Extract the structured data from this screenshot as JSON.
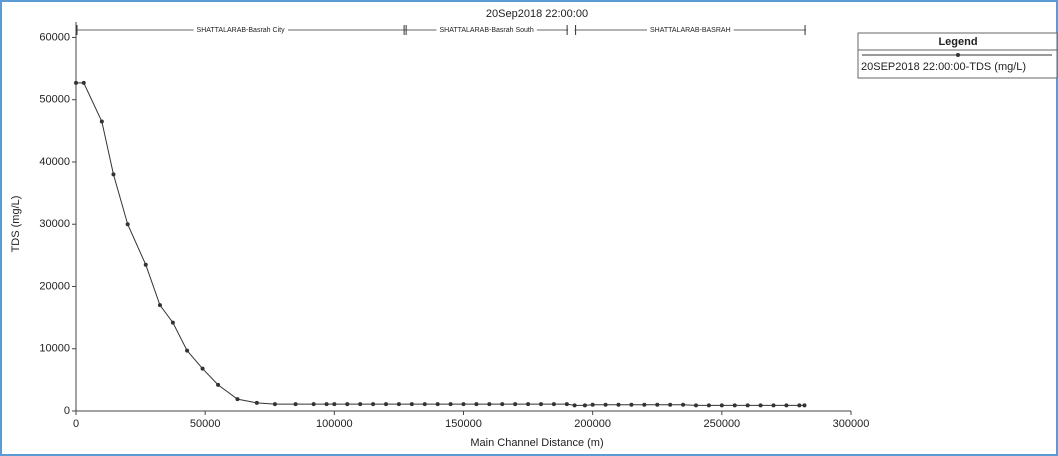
{
  "chart_data": {
    "type": "line",
    "title": "20Sep2018 22:00:00",
    "x_label": "Main Channel Distance (m)",
    "y_label": "TDS (mg/L)",
    "legend_title": "Legend",
    "legend_position": "top-right",
    "grid": false,
    "xlim": [
      0,
      300000
    ],
    "ylim": [
      0,
      62000
    ],
    "xticks": [
      0,
      50000,
      100000,
      150000,
      200000,
      250000,
      300000
    ],
    "yticks": [
      0,
      10000,
      20000,
      30000,
      40000,
      50000,
      60000
    ],
    "reaches": [
      {
        "name": "SHATTALARAB-Basrah City",
        "start": 0,
        "end": 127400
      },
      {
        "name": "SHATTALARAB-Basrah South",
        "start": 127400,
        "end": 190500
      },
      {
        "name": "SHATTALARAB-BASRAH",
        "start": 193000,
        "end": 282600
      }
    ],
    "x": [
      0,
      3000,
      10000,
      14500,
      20000,
      27000,
      32500,
      37500,
      43000,
      49000,
      55000,
      62500,
      70000,
      77000,
      85000,
      92000,
      97000,
      100000,
      105000,
      110000,
      115000,
      120000,
      125000,
      130000,
      135000,
      140000,
      145000,
      150000,
      155000,
      160000,
      165000,
      170000,
      175000,
      180000,
      185000,
      190000,
      193000,
      197000,
      200000,
      205000,
      210000,
      215000,
      220000,
      225000,
      230000,
      235000,
      240000,
      245000,
      250000,
      255000,
      260000,
      265000,
      270000,
      275000,
      280000,
      282000
    ],
    "series": [
      {
        "name": "20SEP2018 22:00:00-TDS (mg/L)",
        "color": "#333333",
        "values": [
          52700,
          52700,
          46500,
          38000,
          30000,
          23500,
          17000,
          14200,
          9700,
          6800,
          4200,
          1900,
          1300,
          1100,
          1100,
          1100,
          1100,
          1100,
          1100,
          1100,
          1100,
          1100,
          1100,
          1100,
          1100,
          1100,
          1100,
          1100,
          1100,
          1100,
          1100,
          1100,
          1100,
          1100,
          1100,
          1100,
          900,
          900,
          1000,
          1000,
          1000,
          1000,
          1000,
          1000,
          1000,
          1000,
          900,
          900,
          900,
          900,
          900,
          900,
          900,
          900,
          900,
          900
        ]
      }
    ]
  }
}
